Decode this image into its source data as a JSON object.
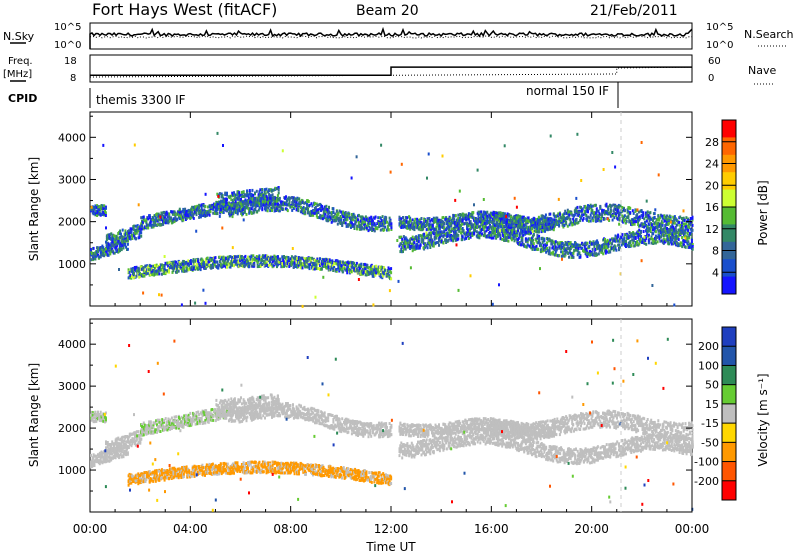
{
  "header": {
    "station": "Fort Hays West (fitACF)",
    "beam": "Beam 20",
    "date": "21/Feb/2011"
  },
  "status_panels": {
    "nsky_label": "N.Sky",
    "nsearch_label": "N.Search",
    "freq_label_top": "Freq.",
    "freq_label_unit": "[MHz]",
    "nave_label": "Nave",
    "cpid_label": "CPID",
    "noise_left_ticks": [
      "10^5",
      "10^0"
    ],
    "noise_right_ticks": [
      "10^5",
      "10^0"
    ],
    "freq_ticks": [
      "18",
      "8"
    ],
    "nave_ticks": [
      "60",
      "0"
    ],
    "cpid_segments": [
      {
        "label": "themis 3300 IF",
        "start_hour": 0,
        "end_hour": 21
      },
      {
        "label": "normal 150 IF",
        "start_hour": 21,
        "end_hour": 24
      }
    ],
    "freq_step": {
      "before_mhz": 10.5,
      "after_mhz": 13.5,
      "change_hour": 12
    }
  },
  "chart_data": [
    {
      "type": "heatmap",
      "title": "Power",
      "xlabel": "",
      "ylabel": "Slant Range [km]",
      "xlim": [
        0,
        24
      ],
      "ylim": [
        0,
        4600
      ],
      "y_ticks": [
        "4000",
        "3000",
        "2000",
        "1000"
      ],
      "colorbar_label": "Power [dB]",
      "colorbar_ticks": [
        "28",
        "24",
        "20",
        "16",
        "12",
        "8",
        "4"
      ],
      "colorbar_colors": [
        "#ff0000",
        "#ff6600",
        "#ff9900",
        "#ffcc00",
        "#ccff33",
        "#55bb33",
        "#338866",
        "#336699",
        "#1a4fcc",
        "#1515ff"
      ]
    },
    {
      "type": "heatmap",
      "title": "Velocity",
      "xlabel": "Time UT",
      "ylabel": "Slant Range [km]",
      "xlim": [
        0,
        24
      ],
      "ylim": [
        0,
        4600
      ],
      "y_ticks": [
        "4000",
        "3000",
        "2000",
        "1000"
      ],
      "x_ticks": [
        "00:00",
        "04:00",
        "08:00",
        "12:00",
        "16:00",
        "20:00",
        "00:00"
      ],
      "colorbar_label": "Velocity [m s⁻¹]",
      "colorbar_ticks": [
        "200",
        "100",
        "50",
        "15",
        "-15",
        "-50",
        "-100",
        "-200"
      ],
      "colorbar_colors": [
        "#1f3fbf",
        "#2255aa",
        "#2e8b57",
        "#66cc33",
        "#bfbfbf",
        "#ffd700",
        "#ff9900",
        "#ff5500",
        "#ff0000"
      ]
    }
  ]
}
